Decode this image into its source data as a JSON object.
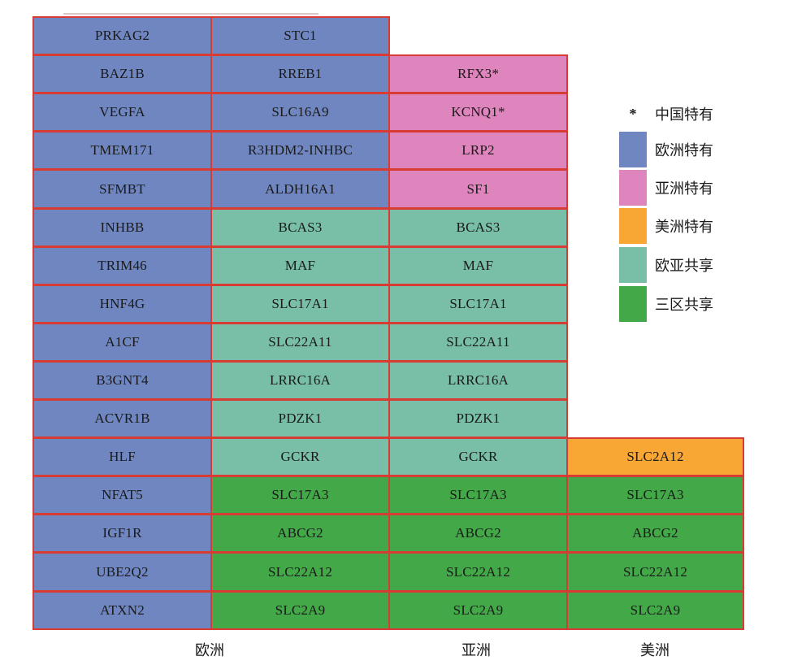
{
  "colors": {
    "europe_only": "#6f86c0",
    "china_only": "#df85bd",
    "america_only": "#f8a634",
    "eu_asia_shared": "#79bea6",
    "three_shared": "#43a847",
    "border": "#d83a34"
  },
  "columns": {
    "europe": "欧洲",
    "asia": "亚洲",
    "america": "美洲"
  },
  "legend": [
    {
      "label": "中国特有",
      "marker": "*"
    },
    {
      "label": "欧洲特有",
      "color": "#6f86c0"
    },
    {
      "label": "亚洲特有",
      "color": "#df85bd"
    },
    {
      "label": "美洲特有",
      "color": "#f8a634"
    },
    {
      "label": "欧亚共享",
      "color": "#79bea6"
    },
    {
      "label": "三区共享",
      "color": "#43a847"
    }
  ],
  "grid": {
    "europe": [
      [
        "PRKAG2",
        "STC1"
      ],
      [
        "BAZ1B",
        "RREB1"
      ],
      [
        "VEGFA",
        "SLC16A9"
      ],
      [
        "TMEM171",
        "R3HDM2-INHBC"
      ],
      [
        "SFMBT",
        "ALDH16A1"
      ],
      [
        "INHBB",
        "BCAS3"
      ],
      [
        "TRIM46",
        "MAF"
      ],
      [
        "HNF4G",
        "SLC17A1"
      ],
      [
        "A1CF",
        "SLC22A11"
      ],
      [
        "B3GNT4",
        "LRRC16A"
      ],
      [
        "ACVR1B",
        "PDZK1"
      ],
      [
        "HLF",
        "GCKR"
      ],
      [
        "NFAT5",
        "SLC17A3"
      ],
      [
        "IGF1R",
        "ABCG2"
      ],
      [
        "UBE2Q2",
        "SLC22A12"
      ],
      [
        "ATXN2",
        "SLC2A9"
      ]
    ],
    "asia": [
      "RFX3*",
      "KCNQ1*",
      "LRP2",
      "SF1",
      "BCAS3",
      "MAF",
      "SLC17A1",
      "SLC22A11",
      "LRRC16A",
      "PDZK1",
      "GCKR",
      "SLC17A3",
      "ABCG2",
      "SLC22A12",
      "SLC2A9"
    ],
    "america": [
      "SLC2A12",
      "SLC17A3",
      "ABCG2",
      "SLC22A12",
      "SLC2A9"
    ]
  }
}
